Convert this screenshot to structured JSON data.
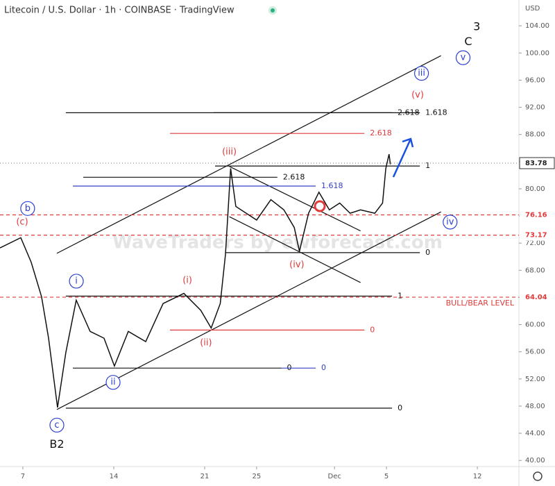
{
  "chart_data": {
    "type": "line",
    "title": "Litecoin / U.S. Dollar · 1h · COINBASE · TradingView",
    "currency": "USD",
    "watermark": "WaveTraders by ewforecast.com",
    "color": "#111111",
    "x": [
      -1.76,
      -0.16,
      0.64,
      1.44,
      1.98,
      2.67,
      3.31,
      4.11,
      5.18,
      6.25,
      7.05,
      8.12,
      9.46,
      10.8,
      12.4,
      13.7,
      14.5,
      15.2,
      15.6,
      16.0,
      16.4,
      17.2,
      18.0,
      19.1,
      20.1,
      20.9,
      21.3,
      22.0,
      22.8,
      23.6,
      24.4,
      25.2,
      26.0,
      27.1,
      27.7,
      27.95,
      28.2,
      28.3
    ],
    "values": [
      71.3,
      72.8,
      69.2,
      64.1,
      58.0,
      47.8,
      55.9,
      63.6,
      59.0,
      58.0,
      53.9,
      59.0,
      57.5,
      63.1,
      64.6,
      62.1,
      59.5,
      63.1,
      70.3,
      83.0,
      77.4,
      76.4,
      75.4,
      78.4,
      76.9,
      74.3,
      70.8,
      76.4,
      79.5,
      76.9,
      77.9,
      76.4,
      76.9,
      76.4,
      77.9,
      83.0,
      85.1,
      83.6
    ],
    "xlim": [
      -1.76,
      38.2
    ],
    "xticks": [
      {
        "value": 0,
        "label": "7"
      },
      {
        "value": 7,
        "label": "14"
      },
      {
        "value": 14,
        "label": "21"
      },
      {
        "value": 18,
        "label": "25"
      },
      {
        "value": 24,
        "label": "Dec"
      },
      {
        "value": 28,
        "label": "5"
      },
      {
        "value": 35,
        "label": "12"
      }
    ],
    "ylim": [
      39.1,
      107.8
    ],
    "yticks": [
      {
        "value": 40,
        "label": "40.00"
      },
      {
        "value": 44,
        "label": "44.00"
      },
      {
        "value": 48,
        "label": "48.00"
      },
      {
        "value": 52,
        "label": "52.00"
      },
      {
        "value": 56,
        "label": "56.00"
      },
      {
        "value": 60,
        "label": "60.00"
      },
      {
        "value": 64,
        "label": "64.00"
      },
      {
        "value": 68,
        "label": "68.00"
      },
      {
        "value": 72,
        "label": "72.00"
      },
      {
        "value": 76,
        "label": "76.00"
      },
      {
        "value": 80,
        "label": "80.00"
      },
      {
        "value": 84,
        "label": "84.00"
      },
      {
        "value": 88,
        "label": "88.00"
      },
      {
        "value": 92,
        "label": "92.00"
      },
      {
        "value": 96,
        "label": "96.00"
      },
      {
        "value": 100,
        "label": "100.00"
      },
      {
        "value": 104,
        "label": "104.00"
      }
    ],
    "levels": [
      {
        "value": 83.78,
        "color": "#888888",
        "style": "dotted"
      },
      {
        "value": 76.16,
        "color": "#e03a3a",
        "style": "dashed"
      },
      {
        "value": 73.17,
        "color": "#e03a3a",
        "style": "dashed"
      },
      {
        "value": 64.04,
        "color": "#e03a3a",
        "style": "dashed"
      }
    ],
    "fib_lines": [
      {
        "x1": 3.31,
        "x2": 28.43,
        "y": 91.2,
        "color": "#111111",
        "label": "2.618"
      },
      {
        "x1": 14.7,
        "x2": 30.57,
        "y": 91.2,
        "color": "#111111",
        "label": "1.618"
      },
      {
        "x1": 11.33,
        "x2": 26.3,
        "y": 88.15,
        "color": "#e03a3a",
        "label": "2.618"
      },
      {
        "x1": 14.8,
        "x2": 30.57,
        "y": 83.35,
        "color": "#111111",
        "label": "1"
      },
      {
        "x1": 4.65,
        "x2": 19.6,
        "y": 81.7,
        "color": "#111111",
        "label": "2.618"
      },
      {
        "x1": 3.85,
        "x2": 22.55,
        "y": 80.4,
        "color": "#3040c0",
        "label": "1.618"
      },
      {
        "x1": 15.6,
        "x2": 30.57,
        "y": 70.6,
        "color": "#111111",
        "label": "0"
      },
      {
        "x1": 3.31,
        "x2": 28.43,
        "y": 64.2,
        "color": "#111111",
        "label": "1"
      },
      {
        "x1": 11.33,
        "x2": 26.3,
        "y": 59.2,
        "color": "#e03a3a",
        "label": "0"
      },
      {
        "x1": 3.85,
        "x2": 19.9,
        "y": 53.6,
        "color": "#111111",
        "label": "0"
      },
      {
        "x1": 19.9,
        "x2": 22.55,
        "y": 53.6,
        "color": "#3040c0",
        "label": "0"
      },
      {
        "x1": 3.31,
        "x2": 28.43,
        "y": 47.7,
        "color": "#111111",
        "label": "0"
      }
    ],
    "trendlines": [
      {
        "x": [
          2.62,
          32.2
        ],
        "y": [
          70.5,
          99.6
        ]
      },
      {
        "x": [
          2.62,
          32.2
        ],
        "y": [
          47.5,
          76.6
        ]
      },
      {
        "x": [
          15.9,
          26.0
        ],
        "y": [
          83.3,
          73.8
        ]
      },
      {
        "x": [
          15.9,
          26.0
        ],
        "y": [
          75.9,
          66.2
        ]
      }
    ],
    "annotations": [
      {
        "text": "3",
        "x": 34.95,
        "y": 103.8,
        "color": "#111111",
        "circled": false
      },
      {
        "text": "C",
        "x": 34.3,
        "y": 101.6,
        "color": "#111111",
        "circled": false
      },
      {
        "text": "v",
        "x": 33.9,
        "y": 99.3,
        "color": "#2a3fd0",
        "circled": true
      },
      {
        "text": "iii",
        "x": 30.7,
        "y": 97.0,
        "color": "#2a3fd0",
        "circled": true
      },
      {
        "text": "(v)",
        "x": 30.4,
        "y": 93.8,
        "color": "#e03a3a",
        "circled": false
      },
      {
        "text": "(iii)",
        "x": 15.9,
        "y": 85.4,
        "color": "#e03a3a",
        "circled": false
      },
      {
        "text": "b",
        "x": 0.37,
        "y": 77.1,
        "color": "#2a3fd0",
        "circled": true
      },
      {
        "text": "(c)",
        "x": -0.05,
        "y": 75.1,
        "color": "#e03a3a",
        "circled": false
      },
      {
        "text": "i",
        "x": 4.12,
        "y": 66.4,
        "color": "#2a3fd0",
        "circled": true
      },
      {
        "text": "(i)",
        "x": 12.67,
        "y": 66.5,
        "color": "#e03a3a",
        "circled": false
      },
      {
        "text": "(iv)",
        "x": 21.1,
        "y": 68.8,
        "color": "#e03a3a",
        "circled": false
      },
      {
        "text": "iv",
        "x": 32.9,
        "y": 75.1,
        "color": "#2a3fd0",
        "circled": true
      },
      {
        "text": "(ii)",
        "x": 14.1,
        "y": 57.3,
        "color": "#e03a3a",
        "circled": false
      },
      {
        "text": "ii",
        "x": 6.95,
        "y": 51.5,
        "color": "#2a3fd0",
        "circled": true
      },
      {
        "text": "c",
        "x": 2.62,
        "y": 45.2,
        "color": "#2a3fd0",
        "circled": true
      },
      {
        "text": "B2",
        "x": 2.62,
        "y": 42.3,
        "color": "#111111",
        "circled": false
      },
      {
        "text": "BULL/BEAR LEVEL",
        "x": 35.2,
        "y": 63.1,
        "color": "#e03a3a",
        "circled": false
      }
    ]
  }
}
